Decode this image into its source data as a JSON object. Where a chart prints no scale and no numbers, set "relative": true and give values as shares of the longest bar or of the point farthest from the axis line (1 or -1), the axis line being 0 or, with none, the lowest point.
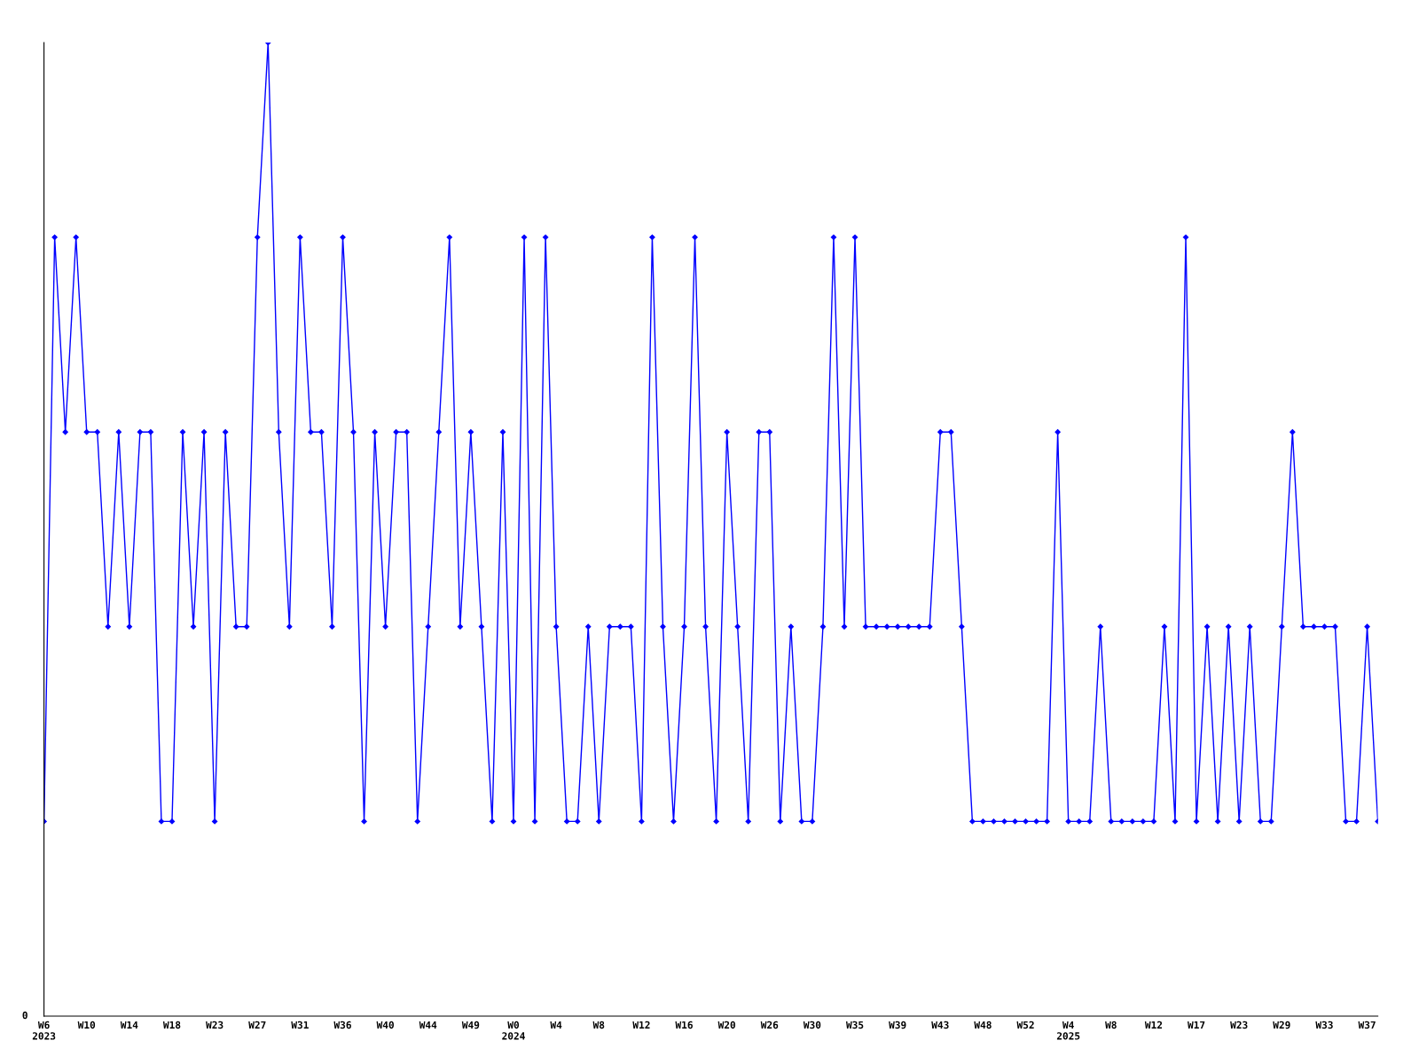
{
  "chart_data": {
    "type": "line",
    "relative": true,
    "categories": [
      "W6\n2023",
      null,
      null,
      null,
      "W10",
      null,
      null,
      null,
      "W14",
      null,
      null,
      null,
      "W18",
      null,
      null,
      null,
      "W23",
      null,
      null,
      null,
      "W27",
      null,
      null,
      null,
      "W31",
      null,
      null,
      null,
      "W36",
      null,
      null,
      null,
      "W40",
      null,
      null,
      null,
      "W44",
      null,
      null,
      null,
      "W49",
      null,
      null,
      null,
      "W0\n2024",
      null,
      null,
      null,
      "W4",
      null,
      null,
      null,
      "W8",
      null,
      null,
      null,
      "W12",
      null,
      null,
      null,
      "W16",
      null,
      null,
      null,
      "W20",
      null,
      null,
      null,
      "W26",
      null,
      null,
      null,
      "W30",
      null,
      null,
      null,
      "W35",
      null,
      null,
      null,
      "W39",
      null,
      null,
      null,
      "W43",
      null,
      null,
      null,
      "W48",
      null,
      null,
      null,
      "W52",
      null,
      null,
      null,
      "W4\n2025",
      null,
      null,
      null,
      "W8",
      null,
      null,
      null,
      "W12",
      null,
      null,
      null,
      "W17",
      null,
      null,
      null,
      "W23",
      null,
      null,
      null,
      "W29",
      null,
      null,
      null,
      "W33",
      null,
      null,
      null,
      "W37",
      null
    ],
    "series": [
      {
        "color": "#0000ff",
        "values": [
          0.2,
          0.8,
          0.6,
          0.8,
          0.6,
          0.6,
          0.4,
          0.6,
          0.4,
          0.6,
          0.6,
          0.2,
          0.2,
          0.6,
          0.4,
          0.6,
          0.2,
          0.6,
          0.4,
          0.4,
          0.8,
          1.0,
          0.6,
          0.4,
          0.8,
          0.6,
          0.6,
          0.4,
          0.8,
          0.6,
          0.2,
          0.6,
          0.4,
          0.6,
          0.6,
          0.2,
          0.4,
          0.6,
          0.8,
          0.4,
          0.6,
          0.4,
          0.2,
          0.6,
          0.2,
          0.8,
          0.2,
          0.8,
          0.4,
          0.2,
          0.2,
          0.4,
          0.2,
          0.4,
          0.4,
          0.4,
          0.2,
          0.8,
          0.4,
          0.2,
          0.4,
          0.8,
          0.4,
          0.2,
          0.6,
          0.4,
          0.2,
          0.6,
          0.6,
          0.2,
          0.4,
          0.2,
          0.2,
          0.4,
          0.8,
          0.4,
          0.8,
          0.4,
          0.4,
          0.4,
          0.4,
          0.4,
          0.4,
          0.4,
          0.6,
          0.6,
          0.4,
          0.2,
          0.2,
          0.2,
          0.2,
          0.2,
          0.2,
          0.2,
          0.2,
          0.6,
          0.2,
          0.2,
          0.2,
          0.4,
          0.2,
          0.2,
          0.2,
          0.2,
          0.2,
          0.4,
          0.2,
          0.8,
          0.2,
          0.4,
          0.2,
          0.4,
          0.2,
          0.4,
          0.2,
          0.2,
          0.4,
          0.6,
          0.4,
          0.4,
          0.4,
          0.4,
          0.2,
          0.2,
          0.4,
          0.2
        ]
      }
    ],
    "annotations": [
      "0"
    ],
    "marker": "diamond",
    "line_style": "solid",
    "grid": false,
    "legend": false
  }
}
